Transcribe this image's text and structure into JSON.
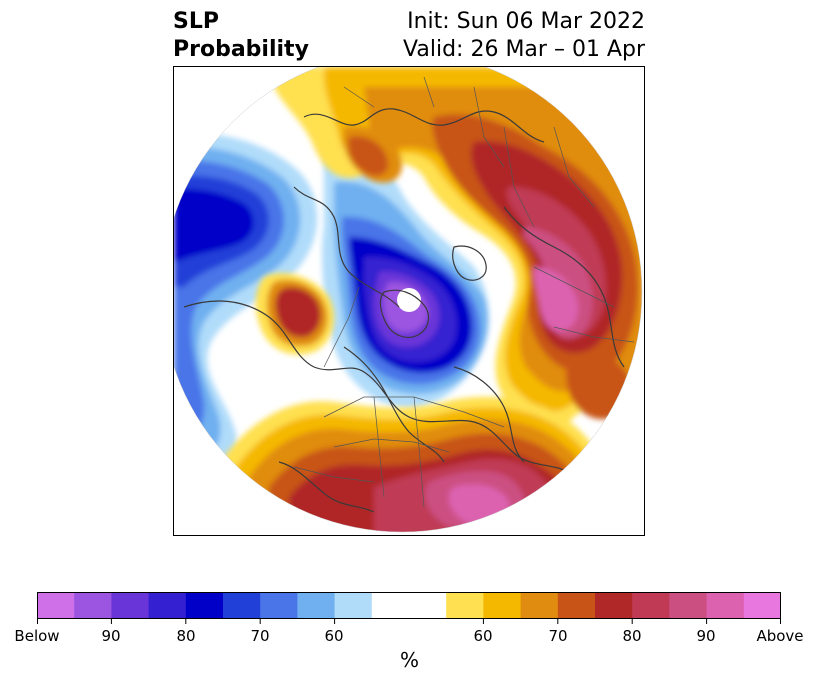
{
  "header": {
    "title_line1": "SLP",
    "title_line2": "Probability",
    "init": "Init: Sun 06 Mar 2022",
    "valid": "Valid: 26 Mar – 01 Apr"
  },
  "map": {
    "projection": "north-polar-stereographic",
    "features": [
      "coastlines",
      "country-borders",
      "state-province-borders"
    ]
  },
  "colorbar": {
    "unit": "%",
    "tick_labels": [
      "Below",
      "90",
      "80",
      "70",
      "60",
      "60",
      "70",
      "80",
      "90",
      "Above"
    ],
    "colors": [
      "#d070e8",
      "#9b55e0",
      "#6a35d8",
      "#3420d0",
      "#0000c8",
      "#2040d8",
      "#4a75e8",
      "#70b0f0",
      "#b0dcfa",
      "#ffffff",
      "#ffffff",
      "#ffe050",
      "#f5b800",
      "#e08c10",
      "#c85418",
      "#b02828",
      "#c03a55",
      "#cc4f82",
      "#dc62b0",
      "#e878e0"
    ]
  }
}
